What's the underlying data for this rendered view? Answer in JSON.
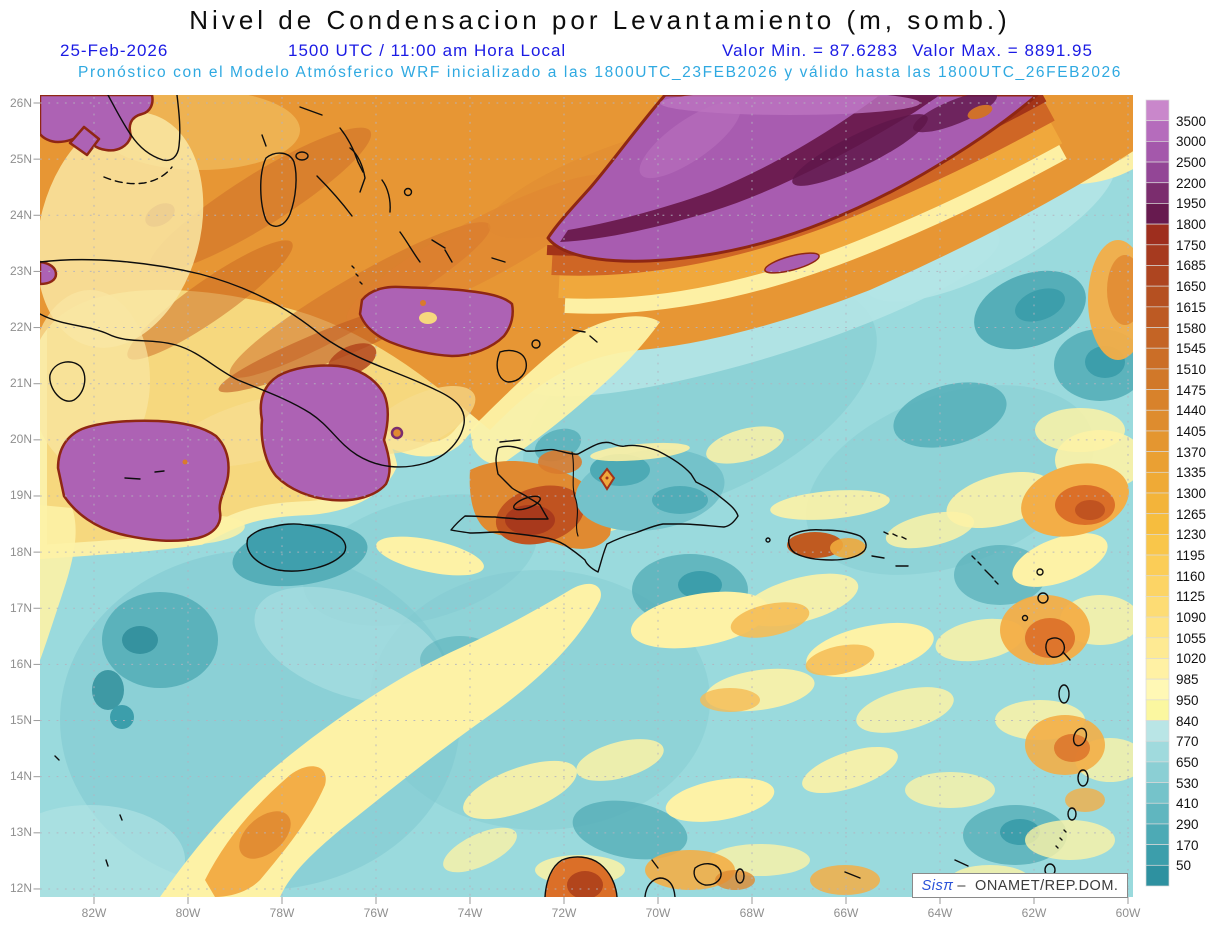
{
  "header": {
    "title": "Nivel de Condensacion por Levantamiento (m, somb.)",
    "date": "25-Feb-2026",
    "time": "1500 UTC / 11:00 am Hora Local",
    "valor_min": "Valor Min. = 87.6283",
    "valor_max": "Valor Max. = 8891.95",
    "forecast": "Pronóstico con el Modelo Atmósferico WRF inicializado a las 1800UTC_23FEB2026 y válido hasta las  1800UTC_26FEB2026"
  },
  "axes": {
    "x": [
      "82W",
      "80W",
      "78W",
      "76W",
      "74W",
      "72W",
      "70W",
      "68W",
      "66W",
      "64W",
      "62W",
      "60W"
    ],
    "y": [
      "26N",
      "25N",
      "24N",
      "23N",
      "22N",
      "21N",
      "20N",
      "19N",
      "18N",
      "17N",
      "16N",
      "15N",
      "14N",
      "13N",
      "12N"
    ]
  },
  "colorbar": {
    "levels": [
      "3500",
      "3000",
      "2500",
      "2200",
      "1950",
      "1800",
      "1750",
      "1685",
      "1650",
      "1615",
      "1580",
      "1545",
      "1510",
      "1475",
      "1440",
      "1405",
      "1370",
      "1335",
      "1300",
      "1265",
      "1230",
      "1195",
      "1160",
      "1125",
      "1090",
      "1055",
      "1020",
      "985",
      "950",
      "840",
      "770",
      "650",
      "530",
      "410",
      "290",
      "170",
      "50"
    ],
    "colors": [
      "#c987cb",
      "#b56cbc",
      "#a458ab",
      "#934696",
      "#7b2d6e",
      "#671a4f",
      "#9e2e1e",
      "#a63a1f",
      "#ae4520",
      "#b55021",
      "#bd5a23",
      "#c46425",
      "#cb6e27",
      "#d17829",
      "#d8822b",
      "#de8c2e",
      "#e49630",
      "#eaa033",
      "#efaa36",
      "#f3b43a",
      "#f6bd3e",
      "#f9c64a",
      "#fbcd57",
      "#fcd465",
      "#fddc74",
      "#fee383",
      "#feea93",
      "#fff1a4",
      "#fff8b5",
      "#fbf7a0",
      "#b9e5e6",
      "#a0dadd",
      "#8bcfd4",
      "#75c3ca",
      "#60b6bf",
      "#4daab5",
      "#3c9eab",
      "#2e91a0"
    ]
  },
  "watermark": {
    "brand": "Sisπ",
    "text": "–  ONAMET/REP.DOM."
  },
  "chart_data": {
    "type": "heatmap",
    "title": "Nivel de Condensacion por Levantamiento (m, somb.)",
    "variable": "Nivel de Condensacion por Levantamiento",
    "units": "m",
    "valid_date": "25-Feb-2026",
    "valid_time": "1500 UTC / 11:00 am Hora Local",
    "value_min": 87.6283,
    "value_max": 8891.95,
    "model": "WRF",
    "initialized": "1800UTC_23FEB2026",
    "valid_until": "1800UTC_26FEB2026",
    "source": "ONAMET/REP.DOM.",
    "x_ticks": [
      "82W",
      "80W",
      "78W",
      "76W",
      "74W",
      "72W",
      "70W",
      "68W",
      "66W",
      "64W",
      "62W",
      "60W"
    ],
    "y_ticks": [
      "26N",
      "25N",
      "24N",
      "23N",
      "22N",
      "21N",
      "20N",
      "19N",
      "18N",
      "17N",
      "16N",
      "15N",
      "14N",
      "13N",
      "12N"
    ],
    "lon_range_degW": [
      83.1,
      59.9
    ],
    "lat_range_degN": [
      12,
      26
    ],
    "contour_levels": [
      50,
      170,
      290,
      410,
      530,
      650,
      770,
      840,
      950,
      985,
      1020,
      1055,
      1090,
      1125,
      1160,
      1195,
      1230,
      1265,
      1300,
      1335,
      1370,
      1405,
      1440,
      1475,
      1510,
      1545,
      1580,
      1615,
      1650,
      1685,
      1750,
      1800,
      1950,
      2200,
      2500,
      3000,
      3500
    ],
    "legend_position": "right",
    "grid": true
  }
}
